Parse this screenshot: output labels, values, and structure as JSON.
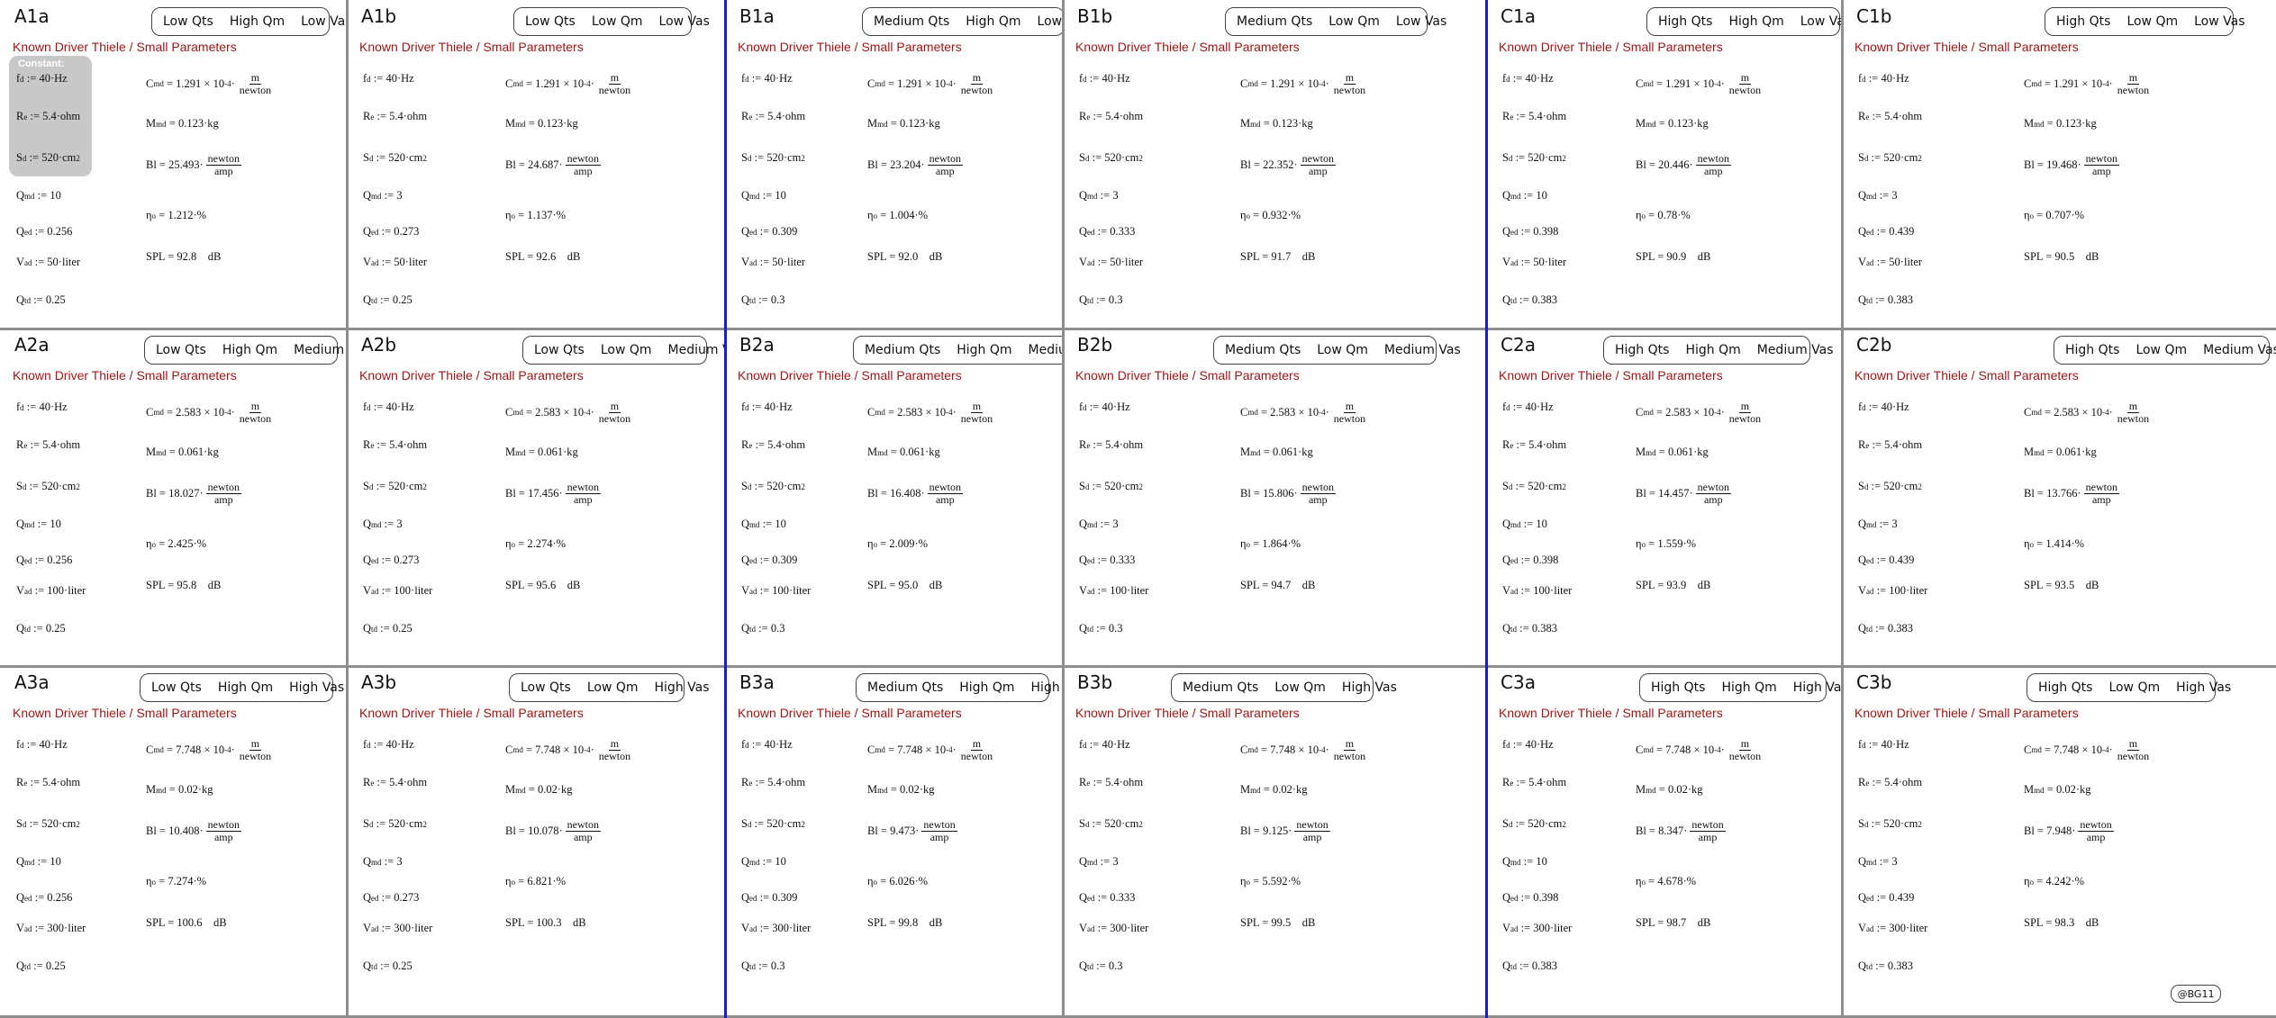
{
  "heading": "Known Driver Thiele / Small Parameters",
  "constant_label": "Constant:",
  "watermark": "@BG11",
  "colors": {
    "heading": "#a31515",
    "divider": "#8e8e8e",
    "blue_divider": "#1c1ccf",
    "constant_box": "#c8c8c8"
  },
  "panels": [
    {
      "id": "A1a",
      "tags": [
        "Low Qts",
        "High Qm",
        "Low Vas"
      ],
      "Qtd": "0.25",
      "Qed": "0.256",
      "Qmd": "10",
      "Vad": "50",
      "Cmd": "1.291",
      "exp": "-4",
      "Mmd": "0.123",
      "Bl": "25.493",
      "eta": "1.212",
      "SPL": "92.8"
    },
    {
      "id": "A1b",
      "tags": [
        "Low Qts",
        "Low Qm",
        "Low Vas"
      ],
      "Qtd": "0.25",
      "Qed": "0.273",
      "Qmd": "3",
      "Vad": "50",
      "Cmd": "1.291",
      "exp": "-4",
      "Mmd": "0.123",
      "Bl": "24.687",
      "eta": "1.137",
      "SPL": "92.6"
    },
    {
      "id": "B1a",
      "tags": [
        "Medium Qts",
        "High Qm",
        "Low Vas"
      ],
      "Qtd": "0.3",
      "Qed": "0.309",
      "Qmd": "10",
      "Vad": "50",
      "Cmd": "1.291",
      "exp": "-4",
      "Mmd": "0.123",
      "Bl": "23.204",
      "eta": "1.004",
      "SPL": "92.0"
    },
    {
      "id": "B1b",
      "tags": [
        "Medium Qts",
        "Low Qm",
        "Low Vas"
      ],
      "Qtd": "0.3",
      "Qed": "0.333",
      "Qmd": "3",
      "Vad": "50",
      "Cmd": "1.291",
      "exp": "-4",
      "Mmd": "0.123",
      "Bl": "22.352",
      "eta": "0.932",
      "SPL": "91.7"
    },
    {
      "id": "C1a",
      "tags": [
        "High Qts",
        "High Qm",
        "Low Vas"
      ],
      "Qtd": "0.383",
      "Qed": "0.398",
      "Qmd": "10",
      "Vad": "50",
      "Cmd": "1.291",
      "exp": "-4",
      "Mmd": "0.123",
      "Bl": "20.446",
      "eta": "0.78",
      "SPL": "90.9"
    },
    {
      "id": "C1b",
      "tags": [
        "High Qts",
        "Low Qm",
        "Low Vas"
      ],
      "Qtd": "0.383",
      "Qed": "0.439",
      "Qmd": "3",
      "Vad": "50",
      "Cmd": "1.291",
      "exp": "-4",
      "Mmd": "0.123",
      "Bl": "19.468",
      "eta": "0.707",
      "SPL": "90.5"
    },
    {
      "id": "A2a",
      "tags": [
        "Low Qts",
        "High Qm",
        "Medium Vas"
      ],
      "Qtd": "0.25",
      "Qed": "0.256",
      "Qmd": "10",
      "Vad": "100",
      "Cmd": "2.583",
      "exp": "-4",
      "Mmd": "0.061",
      "Bl": "18.027",
      "eta": "2.425",
      "SPL": "95.8"
    },
    {
      "id": "A2b",
      "tags": [
        "Low Qts",
        "Low Qm",
        "Medium Vas"
      ],
      "Qtd": "0.25",
      "Qed": "0.273",
      "Qmd": "3",
      "Vad": "100",
      "Cmd": "2.583",
      "exp": "-4",
      "Mmd": "0.061",
      "Bl": "17.456",
      "eta": "2.274",
      "SPL": "95.6"
    },
    {
      "id": "B2a",
      "tags": [
        "Medium Qts",
        "High Qm",
        "Medium Vas"
      ],
      "Qtd": "0.3",
      "Qed": "0.309",
      "Qmd": "10",
      "Vad": "100",
      "Cmd": "2.583",
      "exp": "-4",
      "Mmd": "0.061",
      "Bl": "16.408",
      "eta": "2.009",
      "SPL": "95.0"
    },
    {
      "id": "B2b",
      "tags": [
        "Medium Qts",
        "Low Qm",
        "Medium Vas"
      ],
      "Qtd": "0.3",
      "Qed": "0.333",
      "Qmd": "3",
      "Vad": "100",
      "Cmd": "2.583",
      "exp": "-4",
      "Mmd": "0.061",
      "Bl": "15.806",
      "eta": "1.864",
      "SPL": "94.7"
    },
    {
      "id": "C2a",
      "tags": [
        "High Qts",
        "High Qm",
        "Medium Vas"
      ],
      "Qtd": "0.383",
      "Qed": "0.398",
      "Qmd": "10",
      "Vad": "100",
      "Cmd": "2.583",
      "exp": "-4",
      "Mmd": "0.061",
      "Bl": "14.457",
      "eta": "1.559",
      "SPL": "93.9"
    },
    {
      "id": "C2b",
      "tags": [
        "High Qts",
        "Low Qm",
        "Medium Vas"
      ],
      "Qtd": "0.383",
      "Qed": "0.439",
      "Qmd": "3",
      "Vad": "100",
      "Cmd": "2.583",
      "exp": "-4",
      "Mmd": "0.061",
      "Bl": "13.766",
      "eta": "1.414",
      "SPL": "93.5"
    },
    {
      "id": "A3a",
      "tags": [
        "Low Qts",
        "High Qm",
        "High Vas"
      ],
      "Qtd": "0.25",
      "Qed": "0.256",
      "Qmd": "10",
      "Vad": "300",
      "Cmd": "7.748",
      "exp": "-4",
      "Mmd": "0.02",
      "Bl": "10.408",
      "eta": "7.274",
      "SPL": "100.6"
    },
    {
      "id": "A3b",
      "tags": [
        "Low Qts",
        "Low Qm",
        "High Vas"
      ],
      "Qtd": "0.25",
      "Qed": "0.273",
      "Qmd": "3",
      "Vad": "300",
      "Cmd": "7.748",
      "exp": "-4",
      "Mmd": "0.02",
      "Bl": "10.078",
      "eta": "6.821",
      "SPL": "100.3"
    },
    {
      "id": "B3a",
      "tags": [
        "Medium Qts",
        "High Qm",
        "High Vas"
      ],
      "Qtd": "0.3",
      "Qed": "0.309",
      "Qmd": "10",
      "Vad": "300",
      "Cmd": "7.748",
      "exp": "-4",
      "Mmd": "0.02",
      "Bl": "9.473",
      "eta": "6.026",
      "SPL": "99.8"
    },
    {
      "id": "B3b",
      "tags": [
        "Medium Qts",
        "Low Qm",
        "High Vas"
      ],
      "Qtd": "0.3",
      "Qed": "0.333",
      "Qmd": "3",
      "Vad": "300",
      "Cmd": "7.748",
      "exp": "-4",
      "Mmd": "0.02",
      "Bl": "9.125",
      "eta": "5.592",
      "SPL": "99.5"
    },
    {
      "id": "C3a",
      "tags": [
        "High Qts",
        "High Qm",
        "High Vas"
      ],
      "Qtd": "0.383",
      "Qed": "0.398",
      "Qmd": "10",
      "Vad": "300",
      "Cmd": "7.748",
      "exp": "-4",
      "Mmd": "0.02",
      "Bl": "8.347",
      "eta": "4.678",
      "SPL": "98.7"
    },
    {
      "id": "C3b",
      "tags": [
        "High Qts",
        "Low Qm",
        "High Vas"
      ],
      "Qtd": "0.383",
      "Qed": "0.439",
      "Qmd": "3",
      "Vad": "300",
      "Cmd": "7.748",
      "exp": "-4",
      "Mmd": "0.02",
      "Bl": "7.948",
      "eta": "4.242",
      "SPL": "98.3"
    }
  ],
  "fixed": {
    "fd": "40",
    "Re": "5.4",
    "Sd": "520"
  }
}
